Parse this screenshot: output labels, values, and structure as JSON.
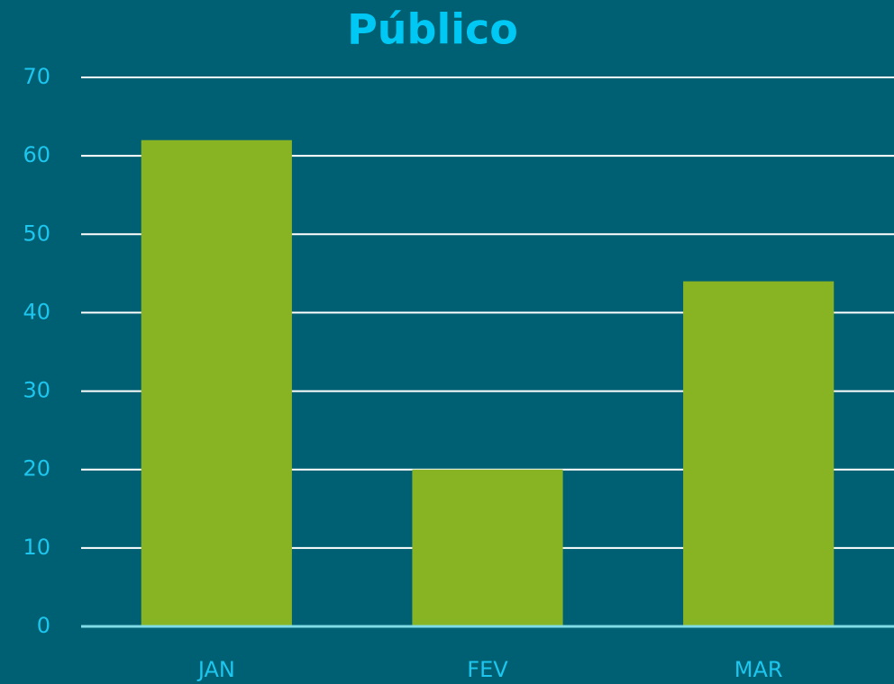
{
  "chart_data": {
    "type": "bar",
    "title": "Público",
    "categories": [
      "JAN",
      "FEV",
      "MAR"
    ],
    "values": [
      62,
      20,
      44
    ],
    "color": "#88b424",
    "ylim": [
      0,
      70
    ],
    "yticks": [
      0,
      10,
      20,
      30,
      40,
      50,
      60,
      70
    ],
    "grid": true
  }
}
